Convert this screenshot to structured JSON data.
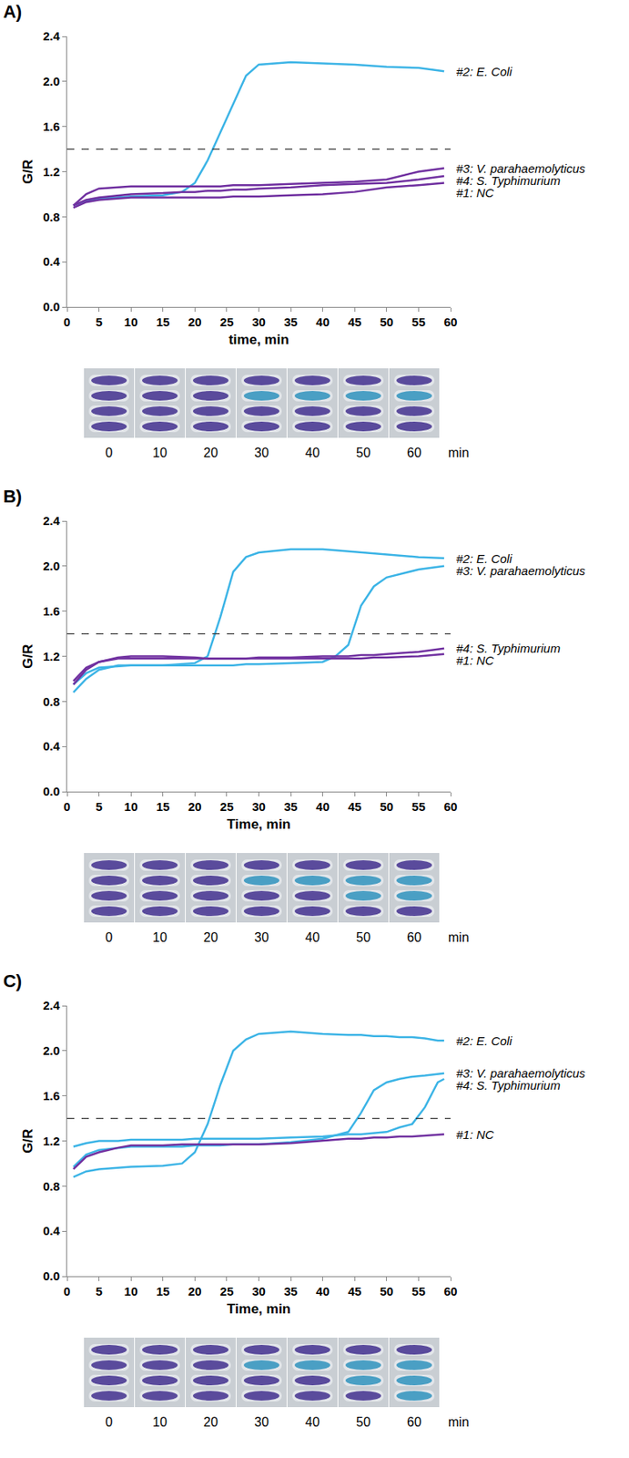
{
  "chart_data": [
    {
      "type": "line",
      "title": "A)",
      "xlabel": "time, min",
      "ylabel": "G/R",
      "xlim": [
        0,
        60
      ],
      "ylim": [
        0,
        2.4
      ],
      "xticks": [
        0,
        5,
        10,
        15,
        20,
        25,
        30,
        35,
        40,
        45,
        50,
        55,
        60
      ],
      "yticks": [
        {
          "value": 0,
          "label": "0.0"
        },
        0.4,
        0.8,
        1.2,
        1.6,
        {
          "value": 2,
          "label": "2.0"
        },
        2.4
      ],
      "threshold": 1.4,
      "line_style": "dashed",
      "grid": false,
      "x": [
        1,
        3,
        5,
        8,
        10,
        15,
        18,
        20,
        22,
        24,
        26,
        28,
        30,
        35,
        40,
        45,
        50,
        55,
        59
      ],
      "series": [
        {
          "name": "#2: E. Coli",
          "color": "#3cb4e6",
          "values": [
            0.9,
            0.94,
            0.96,
            0.97,
            0.98,
            0.99,
            1.02,
            1.1,
            1.3,
            1.55,
            1.8,
            2.05,
            2.15,
            2.17,
            2.16,
            2.15,
            2.13,
            2.12,
            2.09
          ]
        },
        {
          "name": "#3: V. parahaemolyticus",
          "color": "#7030a0",
          "values": [
            0.9,
            1.0,
            1.05,
            1.06,
            1.07,
            1.07,
            1.07,
            1.07,
            1.07,
            1.07,
            1.08,
            1.08,
            1.08,
            1.09,
            1.1,
            1.11,
            1.13,
            1.2,
            1.23
          ]
        },
        {
          "name": "#4: S. Typhimurium",
          "color": "#7030a0",
          "values": [
            0.9,
            0.95,
            0.97,
            0.99,
            1.0,
            1.01,
            1.02,
            1.02,
            1.03,
            1.03,
            1.04,
            1.04,
            1.05,
            1.06,
            1.08,
            1.09,
            1.1,
            1.13,
            1.16
          ]
        },
        {
          "name": "#1: NC",
          "color": "#7030a0",
          "values": [
            0.88,
            0.93,
            0.95,
            0.96,
            0.97,
            0.97,
            0.97,
            0.97,
            0.97,
            0.97,
            0.98,
            0.98,
            0.98,
            0.99,
            1.0,
            1.02,
            1.06,
            1.08,
            1.1
          ]
        }
      ],
      "strip": {
        "times": [
          0,
          10,
          20,
          30,
          40,
          50,
          60
        ],
        "unit": "min",
        "tube_colors": [
          [
            "#5a4b9c",
            "#5a4b9c",
            "#5a4b9c",
            "#5a4b9c"
          ],
          [
            "#5a4b9c",
            "#5a4b9c",
            "#5a4b9c",
            "#5a4b9c"
          ],
          [
            "#5a4b9c",
            "#5a4b9c",
            "#5a4b9c",
            "#5a4b9c"
          ],
          [
            "#5a4b9c",
            "#4a9fc4",
            "#5a4b9c",
            "#5a4b9c"
          ],
          [
            "#5a4b9c",
            "#4a9fc4",
            "#5a4b9c",
            "#5a4b9c"
          ],
          [
            "#5a4b9c",
            "#4a9fc4",
            "#5a4b9c",
            "#5a4b9c"
          ],
          [
            "#5a4b9c",
            "#4a9fc4",
            "#5a4b9c",
            "#5a4b9c"
          ]
        ]
      }
    },
    {
      "type": "line",
      "title": "B)",
      "xlabel": "Time, min",
      "ylabel": "G/R",
      "xlim": [
        0,
        60
      ],
      "ylim": [
        0,
        2.4
      ],
      "xticks": [
        0,
        5,
        10,
        15,
        20,
        25,
        30,
        35,
        40,
        45,
        50,
        55,
        60
      ],
      "yticks": [
        {
          "value": 0,
          "label": "0.0"
        },
        0.4,
        0.8,
        1.2,
        1.6,
        {
          "value": 2,
          "label": "2.0"
        },
        2.4
      ],
      "threshold": 1.4,
      "line_style": "dashed",
      "grid": false,
      "x": [
        1,
        3,
        5,
        8,
        10,
        15,
        20,
        22,
        24,
        26,
        28,
        30,
        35,
        40,
        42,
        44,
        46,
        48,
        50,
        55,
        59
      ],
      "series": [
        {
          "name": "#2: E. Coli",
          "color": "#3cb4e6",
          "values": [
            0.88,
            1.0,
            1.08,
            1.12,
            1.12,
            1.12,
            1.14,
            1.2,
            1.55,
            1.95,
            2.08,
            2.12,
            2.15,
            2.15,
            2.14,
            2.13,
            2.12,
            2.11,
            2.1,
            2.08,
            2.07
          ]
        },
        {
          "name": "#3: V. parahaemolyticus",
          "color": "#3cb4e6",
          "values": [
            0.95,
            1.05,
            1.1,
            1.11,
            1.12,
            1.12,
            1.12,
            1.12,
            1.12,
            1.12,
            1.13,
            1.13,
            1.14,
            1.15,
            1.2,
            1.3,
            1.65,
            1.82,
            1.9,
            1.97,
            2.0
          ]
        },
        {
          "name": "#4: S. Typhimurium",
          "color": "#7030a0",
          "values": [
            0.95,
            1.08,
            1.15,
            1.19,
            1.2,
            1.2,
            1.19,
            1.18,
            1.18,
            1.18,
            1.18,
            1.19,
            1.19,
            1.2,
            1.2,
            1.2,
            1.21,
            1.21,
            1.22,
            1.24,
            1.27
          ]
        },
        {
          "name": "#1: NC",
          "color": "#7030a0",
          "values": [
            0.98,
            1.1,
            1.15,
            1.18,
            1.18,
            1.18,
            1.18,
            1.18,
            1.18,
            1.18,
            1.18,
            1.18,
            1.18,
            1.18,
            1.18,
            1.18,
            1.18,
            1.19,
            1.19,
            1.2,
            1.22
          ]
        }
      ],
      "strip": {
        "times": [
          0,
          10,
          20,
          30,
          40,
          50,
          60
        ],
        "unit": "min",
        "tube_colors": [
          [
            "#5a4b9c",
            "#5a4b9c",
            "#5a4b9c",
            "#5a4b9c"
          ],
          [
            "#5a4b9c",
            "#5a4b9c",
            "#5a4b9c",
            "#5a4b9c"
          ],
          [
            "#5a4b9c",
            "#5a4b9c",
            "#5a4b9c",
            "#5a4b9c"
          ],
          [
            "#5a4b9c",
            "#4a9fc4",
            "#5a4b9c",
            "#5a4b9c"
          ],
          [
            "#5a4b9c",
            "#4a9fc4",
            "#5a4b9c",
            "#5a4b9c"
          ],
          [
            "#5a4b9c",
            "#4a9fc4",
            "#4a9fc4",
            "#5a4b9c"
          ],
          [
            "#5a4b9c",
            "#4a9fc4",
            "#4a9fc4",
            "#5a4b9c"
          ]
        ]
      }
    },
    {
      "type": "line",
      "title": "C)",
      "xlabel": "Time, min",
      "ylabel": "G/R",
      "xlim": [
        0,
        60
      ],
      "ylim": [
        0,
        2.4
      ],
      "xticks": [
        0,
        5,
        10,
        15,
        20,
        25,
        30,
        35,
        40,
        45,
        50,
        55,
        60
      ],
      "yticks": [
        {
          "value": 0,
          "label": "0.0"
        },
        0.4,
        0.8,
        1.2,
        1.6,
        {
          "value": 2,
          "label": "2.0"
        },
        2.4
      ],
      "threshold": 1.4,
      "line_style": "dashed",
      "grid": false,
      "x": [
        1,
        3,
        5,
        8,
        10,
        15,
        18,
        20,
        22,
        24,
        26,
        28,
        30,
        35,
        40,
        44,
        46,
        48,
        50,
        52,
        54,
        56,
        58,
        59
      ],
      "series": [
        {
          "name": "#2: E. Coli",
          "color": "#3cb4e6",
          "values": [
            0.88,
            0.93,
            0.95,
            0.96,
            0.97,
            0.98,
            1.0,
            1.1,
            1.35,
            1.7,
            2.0,
            2.1,
            2.15,
            2.17,
            2.15,
            2.14,
            2.14,
            2.13,
            2.13,
            2.12,
            2.12,
            2.11,
            2.09,
            2.09
          ]
        },
        {
          "name": "#3: V. parahaemolyticus",
          "color": "#3cb4e6",
          "values": [
            0.97,
            1.08,
            1.12,
            1.14,
            1.15,
            1.15,
            1.15,
            1.16,
            1.16,
            1.16,
            1.17,
            1.17,
            1.17,
            1.19,
            1.22,
            1.28,
            1.45,
            1.65,
            1.72,
            1.75,
            1.77,
            1.78,
            1.79,
            1.8
          ]
        },
        {
          "name": "#4: S. Typhimurium",
          "color": "#3cb4e6",
          "values": [
            1.15,
            1.18,
            1.2,
            1.2,
            1.21,
            1.21,
            1.21,
            1.22,
            1.22,
            1.22,
            1.22,
            1.22,
            1.22,
            1.23,
            1.24,
            1.26,
            1.26,
            1.27,
            1.28,
            1.32,
            1.35,
            1.5,
            1.72,
            1.75
          ]
        },
        {
          "name": "#1: NC",
          "color": "#7030a0",
          "values": [
            0.95,
            1.06,
            1.1,
            1.14,
            1.16,
            1.16,
            1.17,
            1.17,
            1.17,
            1.17,
            1.17,
            1.17,
            1.17,
            1.18,
            1.2,
            1.22,
            1.22,
            1.23,
            1.23,
            1.24,
            1.24,
            1.25,
            1.26,
            1.26
          ]
        }
      ],
      "strip": {
        "times": [
          0,
          10,
          20,
          30,
          40,
          50,
          60
        ],
        "unit": "min",
        "tube_colors": [
          [
            "#5a4b9c",
            "#5a4b9c",
            "#5a4b9c",
            "#5a4b9c"
          ],
          [
            "#5a4b9c",
            "#5a4b9c",
            "#5a4b9c",
            "#5a4b9c"
          ],
          [
            "#5a4b9c",
            "#5a4b9c",
            "#5a4b9c",
            "#5a4b9c"
          ],
          [
            "#5a4b9c",
            "#4a9fc4",
            "#5a4b9c",
            "#5a4b9c"
          ],
          [
            "#5a4b9c",
            "#4a9fc4",
            "#5a4b9c",
            "#5a4b9c"
          ],
          [
            "#5a4b9c",
            "#4a9fc4",
            "#4a9fc4",
            "#5a4b9c"
          ],
          [
            "#5a4b9c",
            "#4a9fc4",
            "#4a9fc4",
            "#4a9fc4"
          ]
        ]
      }
    }
  ]
}
